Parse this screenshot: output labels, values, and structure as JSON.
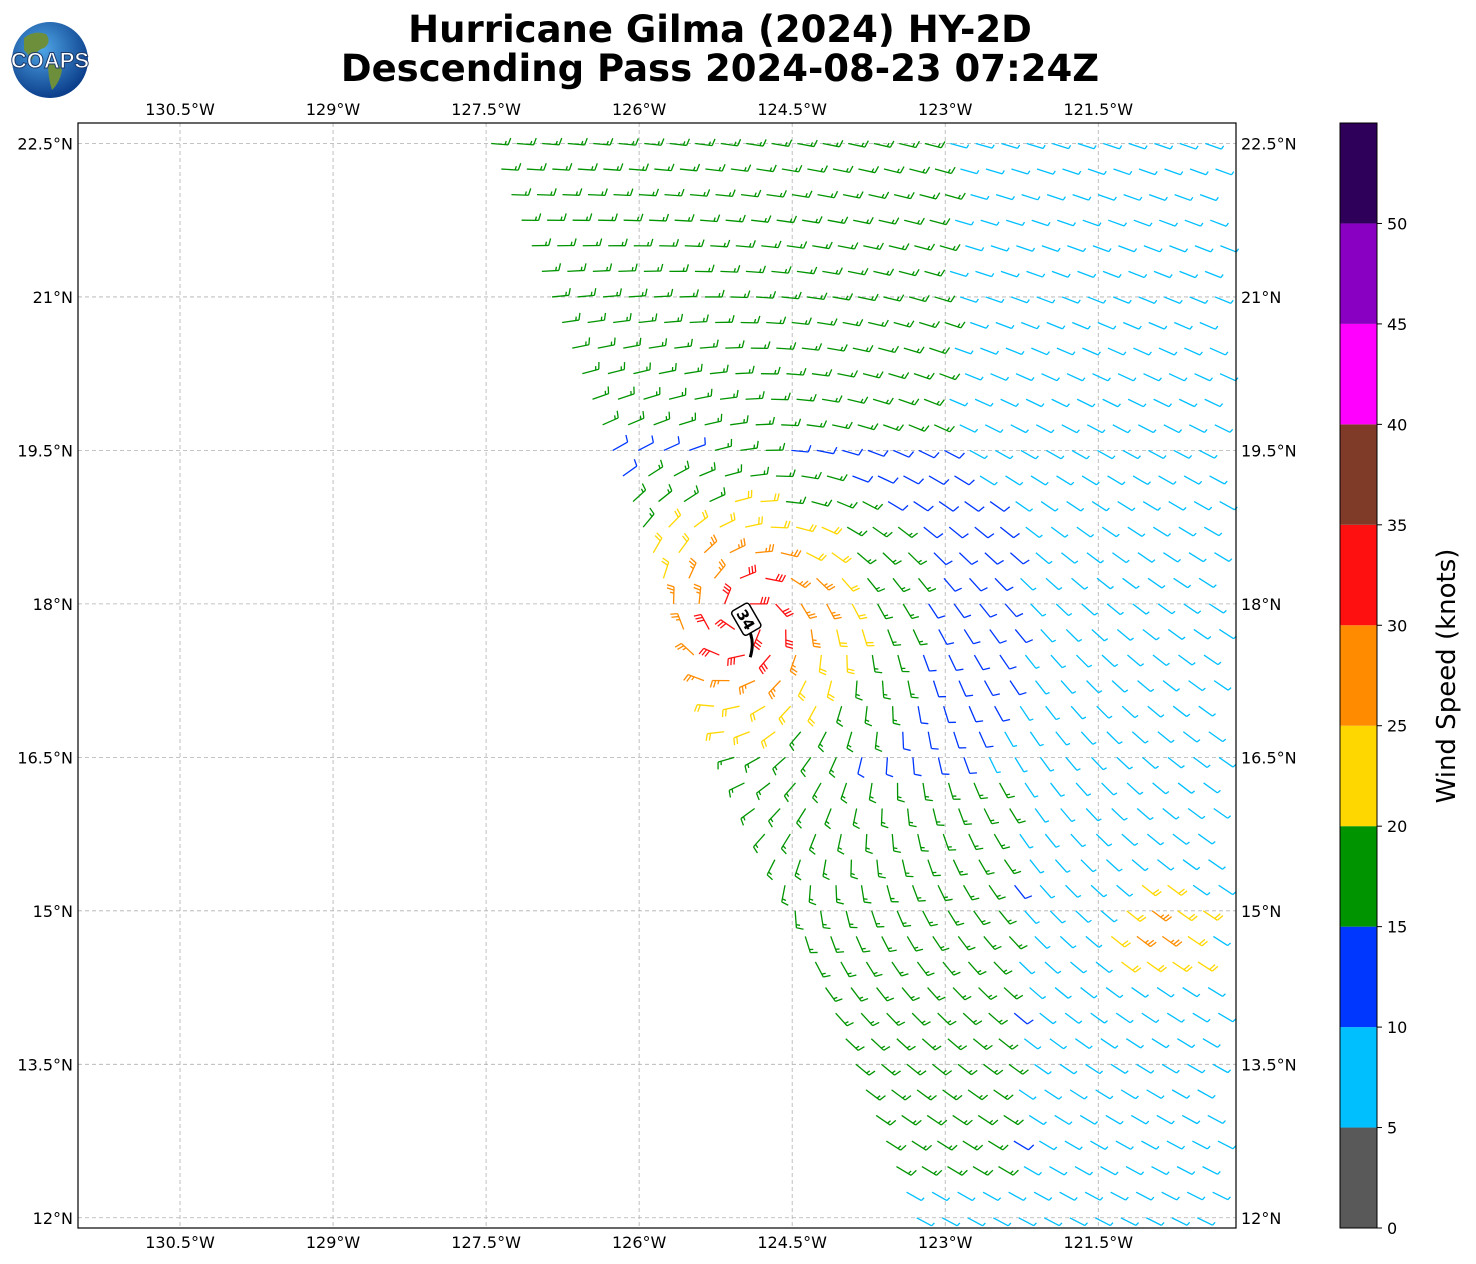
{
  "header": {
    "title_line1": "Hurricane Gilma (2024) HY-2D",
    "title_line2": "Descending Pass 2024-08-23 07:24Z",
    "logo_text": "COAPS"
  },
  "map": {
    "lon_range": [
      -131.5,
      -120.15
    ],
    "lat_range": [
      11.9,
      22.7
    ],
    "lon_ticks": [
      {
        "value": -130.5,
        "label": "130.5°W"
      },
      {
        "value": -129.0,
        "label": "129°W"
      },
      {
        "value": -127.5,
        "label": "127.5°W"
      },
      {
        "value": -126.0,
        "label": "126°W"
      },
      {
        "value": -124.5,
        "label": "124.5°W"
      },
      {
        "value": -123.0,
        "label": "123°W"
      },
      {
        "value": -121.5,
        "label": "121.5°W"
      }
    ],
    "lat_ticks": [
      {
        "value": 22.5,
        "label": "22.5°N"
      },
      {
        "value": 21.0,
        "label": "21°N"
      },
      {
        "value": 19.5,
        "label": "19.5°N"
      },
      {
        "value": 18.0,
        "label": "18°N"
      },
      {
        "value": 16.5,
        "label": "16.5°N"
      },
      {
        "value": 15.0,
        "label": "15°N"
      },
      {
        "value": 13.5,
        "label": "13.5°N"
      },
      {
        "value": 12.0,
        "label": "12°N"
      }
    ],
    "gridlines": true,
    "storm_center": {
      "lon": -124.95,
      "lat": 17.85,
      "label": "34"
    }
  },
  "colorbar": {
    "title": "Wind Speed (knots)",
    "bins": [
      {
        "min": 0,
        "max": 5,
        "color": "#595959"
      },
      {
        "min": 5,
        "max": 10,
        "color": "#00bfff"
      },
      {
        "min": 10,
        "max": 15,
        "color": "#0037ff"
      },
      {
        "min": 15,
        "max": 20,
        "color": "#009400"
      },
      {
        "min": 20,
        "max": 25,
        "color": "#ffd700"
      },
      {
        "min": 25,
        "max": 30,
        "color": "#ff8c00"
      },
      {
        "min": 30,
        "max": 35,
        "color": "#ff1010"
      },
      {
        "min": 35,
        "max": 40,
        "color": "#803a28"
      },
      {
        "min": 40,
        "max": 45,
        "color": "#ff00ff"
      },
      {
        "min": 45,
        "max": 50,
        "color": "#8a00c2"
      },
      {
        "min": 50,
        "max": 55,
        "color": "#2e0059"
      }
    ],
    "tick_labels": [
      "0",
      "5",
      "10",
      "15",
      "20",
      "25",
      "30",
      "35",
      "40",
      "45",
      "50"
    ]
  }
}
